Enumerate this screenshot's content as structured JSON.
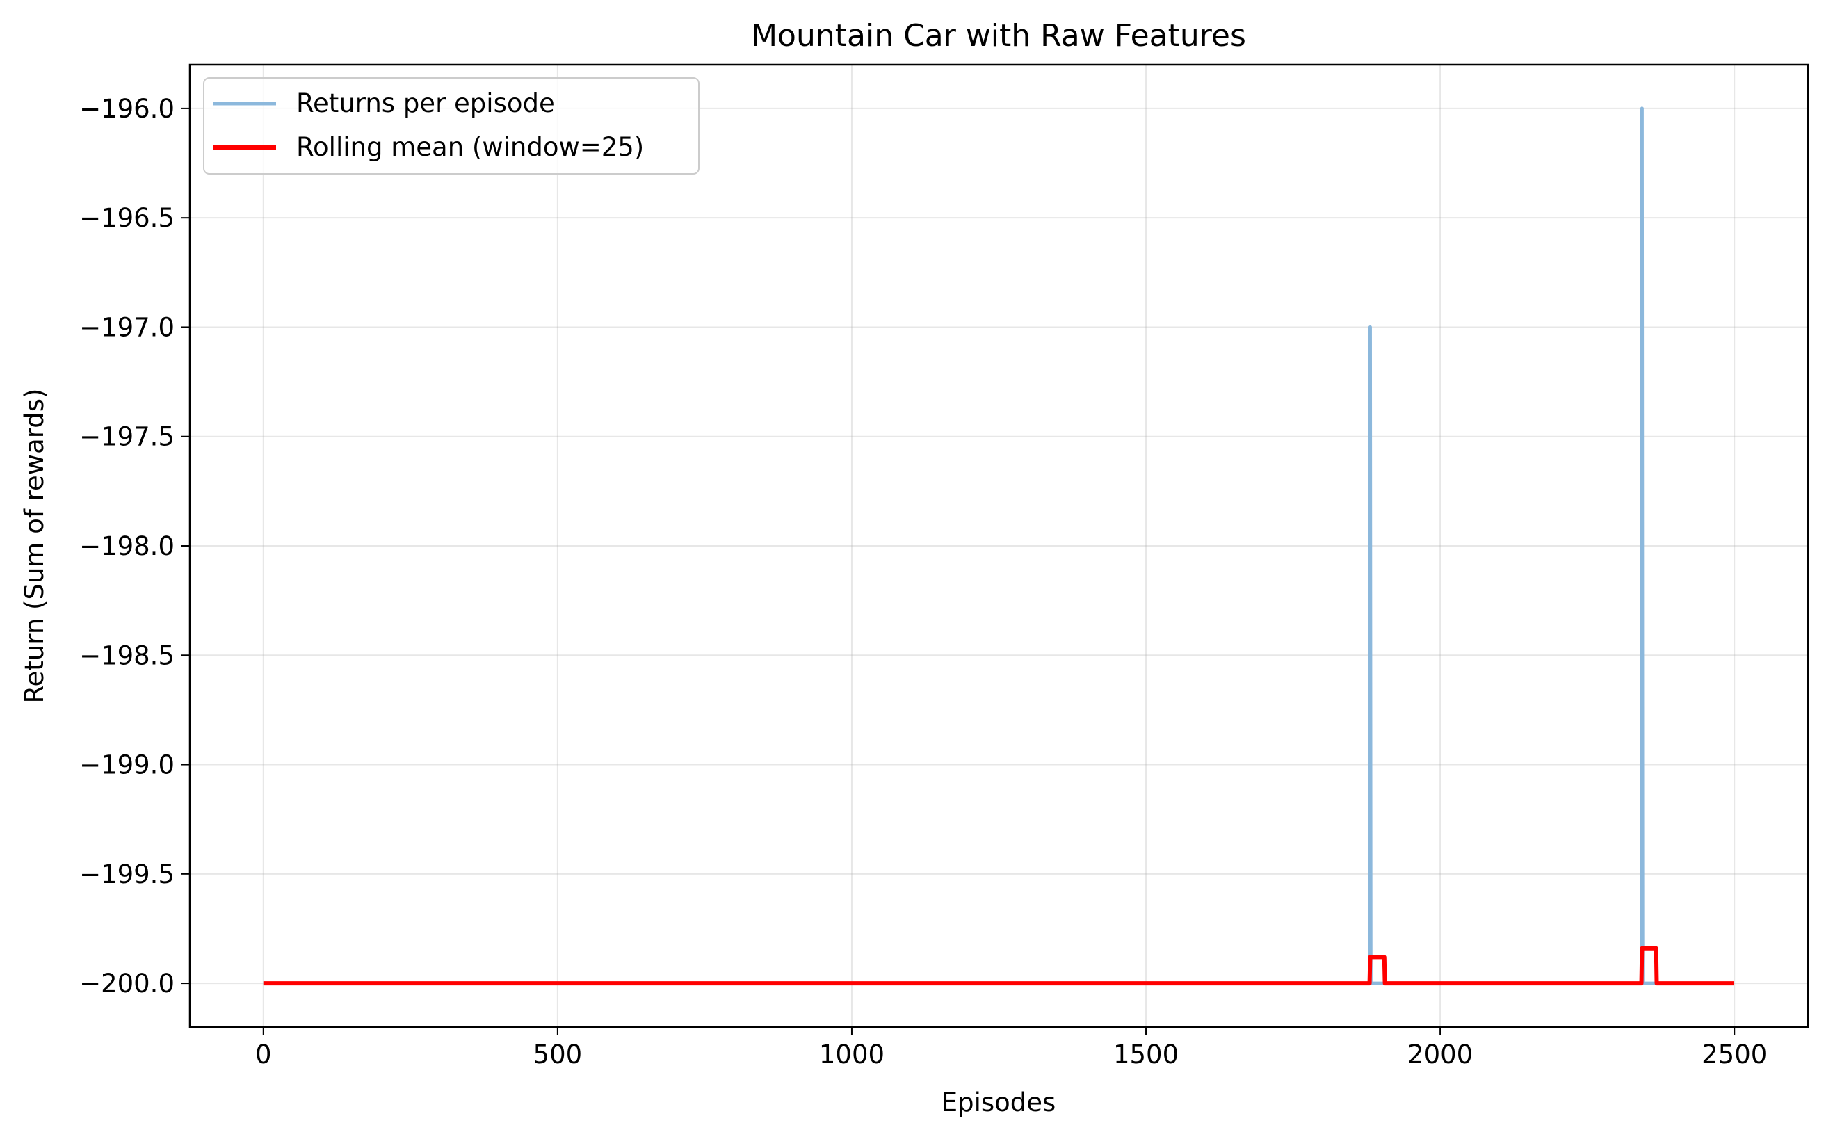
{
  "chart_data": {
    "type": "line",
    "title": "Mountain Car with Raw Features",
    "xlabel": "Episodes",
    "ylabel": "Return (Sum of rewards)",
    "xlim": [
      -125,
      2625
    ],
    "ylim": [
      -200.2,
      -195.8
    ],
    "xticks": [
      0,
      500,
      1000,
      1500,
      2000,
      2500
    ],
    "xtick_labels": [
      "0",
      "500",
      "1000",
      "1500",
      "2000",
      "2500"
    ],
    "yticks": [
      -196.0,
      -196.5,
      -197.0,
      -197.5,
      -198.0,
      -198.5,
      -199.0,
      -199.5,
      -200.0
    ],
    "ytick_labels": [
      "−196.0",
      "−196.5",
      "−197.0",
      "−197.5",
      "−198.0",
      "−198.5",
      "−199.0",
      "−199.5",
      "−200.0"
    ],
    "grid": true,
    "legend_position": "top-left",
    "series": [
      {
        "name": "Returns per episode",
        "color": "#8cb8dc",
        "x": [
          0,
          1880,
          1881,
          1882,
          2342,
          2343,
          2344,
          2499
        ],
        "y": [
          -200,
          -200,
          -197,
          -200,
          -200,
          -196,
          -200,
          -200
        ]
      },
      {
        "name": "Rolling mean (window=25)",
        "color": "#ff0000",
        "x": [
          0,
          1880,
          1881,
          1905,
          1906,
          2342,
          2343,
          2367,
          2368,
          2499
        ],
        "y": [
          -200,
          -200,
          -199.88,
          -199.88,
          -200,
          -200,
          -199.84,
          -199.84,
          -200,
          -200
        ]
      }
    ]
  }
}
